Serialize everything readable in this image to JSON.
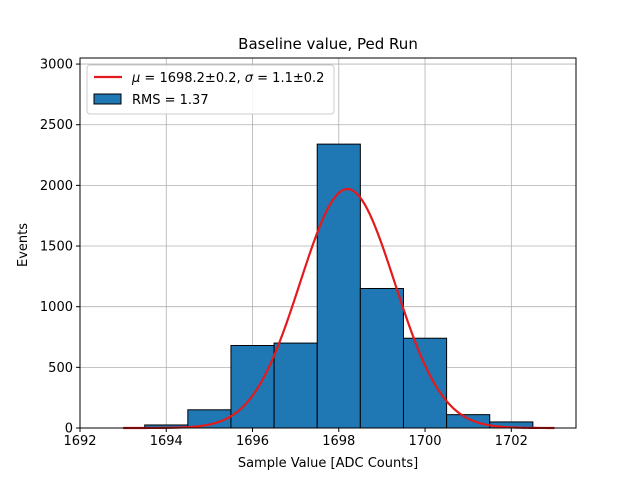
{
  "chart_data": {
    "type": "bar",
    "title": "Baseline value, Ped Run",
    "xlabel": "Sample Value [ADC Counts]",
    "ylabel": "Events",
    "xlim": [
      1692,
      1703.5
    ],
    "ylim": [
      0,
      3050
    ],
    "grid": true,
    "xticks": [
      1692,
      1694,
      1696,
      1698,
      1700,
      1702
    ],
    "yticks": [
      0,
      500,
      1000,
      1500,
      2000,
      2500,
      3000
    ],
    "bin_edges": [
      1693.5,
      1694.5,
      1695.5,
      1696.5,
      1697.5,
      1698.5,
      1699.5,
      1700.5,
      1701.5,
      1702.5
    ],
    "values": [
      25,
      150,
      680,
      700,
      2340,
      1150,
      740,
      110,
      50
    ],
    "fit": {
      "mu": 1698.2,
      "sigma": 1.1,
      "amplitude": 1970,
      "x_range": [
        1693,
        1703
      ]
    },
    "legend": {
      "placement": "top-left",
      "fit_mu_symbol": "μ",
      "fit_mu_text": " = 1698.2±0.2, ",
      "fit_sigma_symbol": "σ",
      "fit_sigma_text": " = 1.1±0.2",
      "hist_label": "RMS = 1.37"
    },
    "colors": {
      "bar_fill": "#1f77b4",
      "bar_edge": "#000000",
      "fit_line": "#e41a1c",
      "grid": "#b0b0b0"
    }
  }
}
